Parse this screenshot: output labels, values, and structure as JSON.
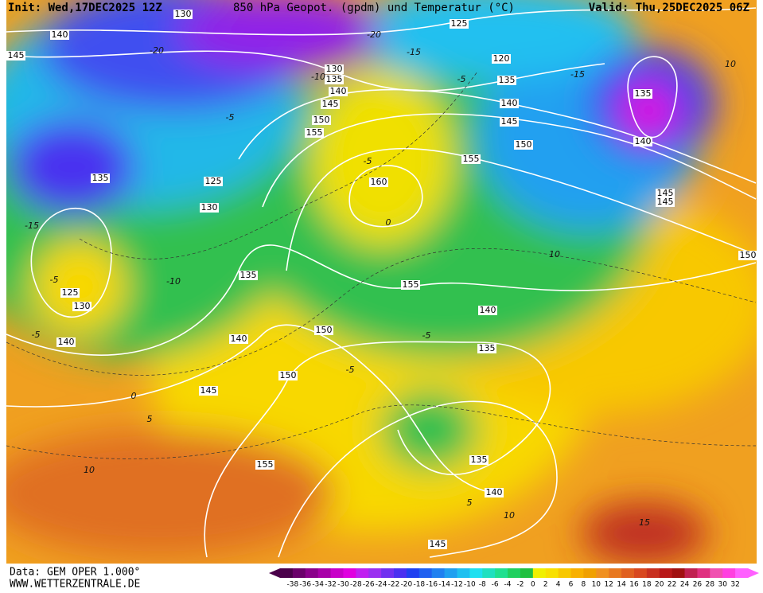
{
  "header": {
    "init": "Init: Wed,17DEC2025 12Z",
    "title": "850 hPa Geopot. (gpdm) und Temperatur (°C)",
    "valid": "Valid: Thu,25DEC2025 06Z"
  },
  "footer": {
    "data": "Data: GEM OPER 1.000°",
    "site": "WWW.WETTERZENTRALE.DE"
  },
  "geopotential_labels": [
    130,
    140,
    145,
    125,
    120,
    130,
    135,
    140,
    145,
    150,
    155,
    160,
    135,
    140,
    145,
    150,
    155,
    135,
    140,
    145,
    145,
    135,
    125,
    130,
    135,
    125,
    130,
    140,
    140,
    150,
    150,
    145,
    155,
    140,
    135,
    150,
    155,
    135,
    140,
    145
  ],
  "temperature_labels": [
    -20,
    -15,
    -20,
    -15,
    -10,
    -5,
    -5,
    -15,
    -10,
    -5,
    -5,
    0,
    5,
    10,
    -5,
    0,
    10,
    5,
    10,
    15,
    10,
    -5,
    -5
  ],
  "colorbar": {
    "labels": [
      -38,
      -36,
      -34,
      -32,
      -30,
      -28,
      -26,
      -24,
      -22,
      -20,
      -18,
      -16,
      -14,
      -12,
      -10,
      -8,
      -6,
      -4,
      -2,
      0,
      2,
      4,
      6,
      8,
      10,
      12,
      14,
      16,
      18,
      20,
      22,
      24,
      26,
      28,
      30,
      32
    ],
    "colors": [
      "#4a004a",
      "#6a006a",
      "#8a008a",
      "#a800a8",
      "#c800c8",
      "#e000e0",
      "#c020f0",
      "#9a30f0",
      "#7030f0",
      "#4a30f0",
      "#2040f0",
      "#2060f0",
      "#2080f0",
      "#20a0f0",
      "#20c0f0",
      "#20e0f0",
      "#20e0c0",
      "#20e090",
      "#20d060",
      "#20c040",
      "#f0f000",
      "#f8e000",
      "#f8c800",
      "#f8b000",
      "#f0a000",
      "#f09020",
      "#e87820",
      "#e06020",
      "#d84820",
      "#c83020",
      "#b81818",
      "#a01010",
      "#c02050",
      "#e03080",
      "#f050b0",
      "#ff40e0",
      "#ff60ff"
    ]
  }
}
